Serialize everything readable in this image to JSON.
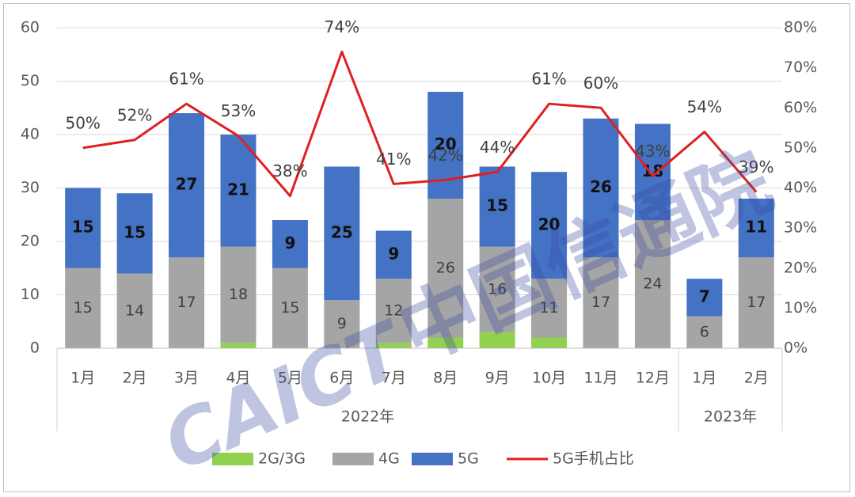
{
  "chart_data": {
    "type": "bar",
    "stacked": true,
    "groups": [
      {
        "label": "2022年",
        "categories": [
          "1月",
          "2月",
          "3月",
          "4月",
          "5月",
          "6月",
          "7月",
          "8月",
          "9月",
          "10月",
          "11月",
          "12月"
        ]
      },
      {
        "label": "2023年",
        "categories": [
          "1月",
          "2月"
        ]
      }
    ],
    "categories": [
      "1月",
      "2月",
      "3月",
      "4月",
      "5月",
      "6月",
      "7月",
      "8月",
      "9月",
      "10月",
      "11月",
      "12月",
      "1月",
      "2月"
    ],
    "series": [
      {
        "name": "2G/3G",
        "kind": "bar",
        "color": "#92d050",
        "values": [
          0,
          0,
          0,
          1,
          0,
          0,
          1,
          2,
          3,
          2,
          0,
          0,
          0,
          0
        ]
      },
      {
        "name": "4G",
        "kind": "bar",
        "color": "#a5a5a5",
        "values": [
          15,
          14,
          17,
          18,
          15,
          9,
          12,
          26,
          16,
          11,
          17,
          24,
          6,
          17
        ]
      },
      {
        "name": "5G",
        "kind": "bar",
        "color": "#4472c4",
        "values": [
          15,
          15,
          27,
          21,
          9,
          25,
          9,
          20,
          15,
          20,
          26,
          18,
          7,
          11
        ]
      },
      {
        "name": "5G手机占比",
        "kind": "line",
        "axis": "right",
        "color": "#e02020",
        "values": [
          50,
          52,
          61,
          53,
          38,
          74,
          41,
          42,
          44,
          61,
          60,
          43,
          54,
          39
        ]
      }
    ],
    "bar_labels": {
      "4G": [
        "15",
        "14",
        "17",
        "18",
        "15",
        "9",
        "12",
        "26",
        "16",
        "11",
        "17",
        "24",
        "6",
        "17"
      ],
      "5G": [
        "15",
        "15",
        "27",
        "21",
        "9",
        "25",
        "9",
        "20",
        "15",
        "20",
        "26",
        "18",
        "7",
        "11"
      ]
    },
    "line_labels": [
      "50%",
      "52%",
      "61%",
      "53%",
      "38%",
      "74%",
      "41%",
      "42%",
      "44%",
      "61%",
      "60%",
      "43%",
      "54%",
      "39%"
    ],
    "ylim": [
      0,
      60
    ],
    "yticks": [
      "0",
      "10",
      "20",
      "30",
      "40",
      "50",
      "60"
    ],
    "y2lim": [
      0,
      80
    ],
    "y2ticks": [
      "0%",
      "10%",
      "20%",
      "30%",
      "40%",
      "50%",
      "60%",
      "70%",
      "80%"
    ],
    "grid": true,
    "legend_position": "bottom",
    "legend": [
      "2G/3G",
      "4G",
      "5G",
      "5G手机占比"
    ],
    "title": "",
    "xlabel": "",
    "ylabel": ""
  },
  "watermark": {
    "latin": "CAICT",
    "chinese": "中国信通院",
    "color": "#3a4aa0"
  }
}
